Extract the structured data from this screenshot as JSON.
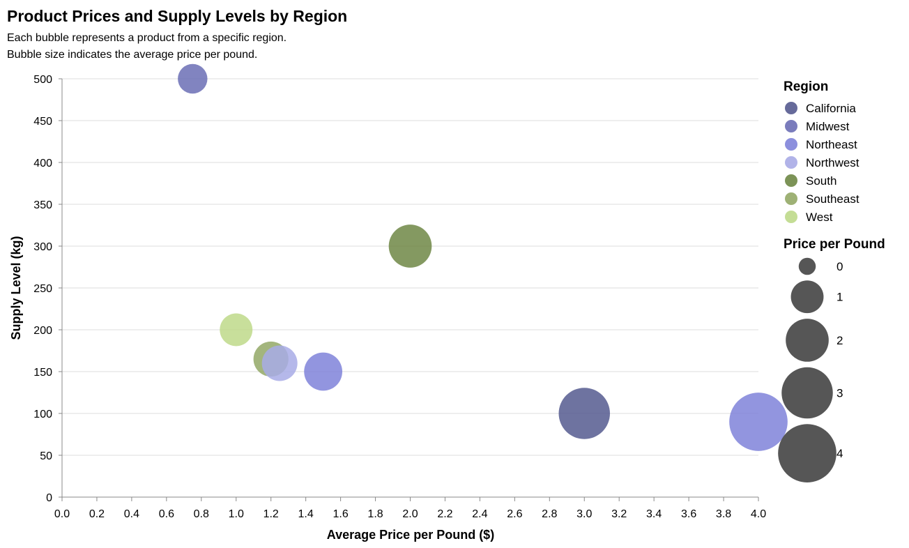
{
  "title": "Product Prices and Supply Levels by Region",
  "subtitle_lines": [
    "Each bubble represents a product from a specific region.",
    "Bubble size indicates the average price per pound."
  ],
  "chart_data": {
    "type": "scatter",
    "xlabel": "Average Price per Pound ($)",
    "ylabel": "Supply Level (kg)",
    "xlim": [
      0,
      4
    ],
    "ylim": [
      0,
      500
    ],
    "x_ticks": [
      "0.0",
      "0.2",
      "0.4",
      "0.6",
      "0.8",
      "1.0",
      "1.2",
      "1.4",
      "1.6",
      "1.8",
      "2.0",
      "2.2",
      "2.4",
      "2.6",
      "2.8",
      "3.0",
      "3.2",
      "3.4",
      "3.6",
      "3.8",
      "4.0"
    ],
    "y_ticks": [
      "0",
      "50",
      "100",
      "150",
      "200",
      "250",
      "300",
      "350",
      "400",
      "450",
      "500"
    ],
    "grid": "horizontal",
    "legend_placement": "right",
    "color_legend_title": "Region",
    "size_legend_title": "Price per Pound",
    "size_legend_values": [
      "0",
      "1",
      "2",
      "3",
      "4"
    ],
    "regions": [
      {
        "name": "California",
        "color": "#555a8f"
      },
      {
        "name": "Midwest",
        "color": "#6b6eb5"
      },
      {
        "name": "Northeast",
        "color": "#7f83d9"
      },
      {
        "name": "Northwest",
        "color": "#a8abe6"
      },
      {
        "name": "South",
        "color": "#6e8745"
      },
      {
        "name": "Southeast",
        "color": "#93a866"
      },
      {
        "name": "West",
        "color": "#bed98a"
      }
    ],
    "points": [
      {
        "region": "Midwest",
        "x": 0.75,
        "y": 500
      },
      {
        "region": "South",
        "x": 2.0,
        "y": 300
      },
      {
        "region": "West",
        "x": 1.0,
        "y": 200
      },
      {
        "region": "Southeast",
        "x": 1.2,
        "y": 165
      },
      {
        "region": "Northwest",
        "x": 1.25,
        "y": 160
      },
      {
        "region": "Northeast",
        "x": 1.5,
        "y": 150
      },
      {
        "region": "California",
        "x": 3.0,
        "y": 100
      },
      {
        "region": "Northeast",
        "x": 4.0,
        "y": 90
      }
    ]
  }
}
